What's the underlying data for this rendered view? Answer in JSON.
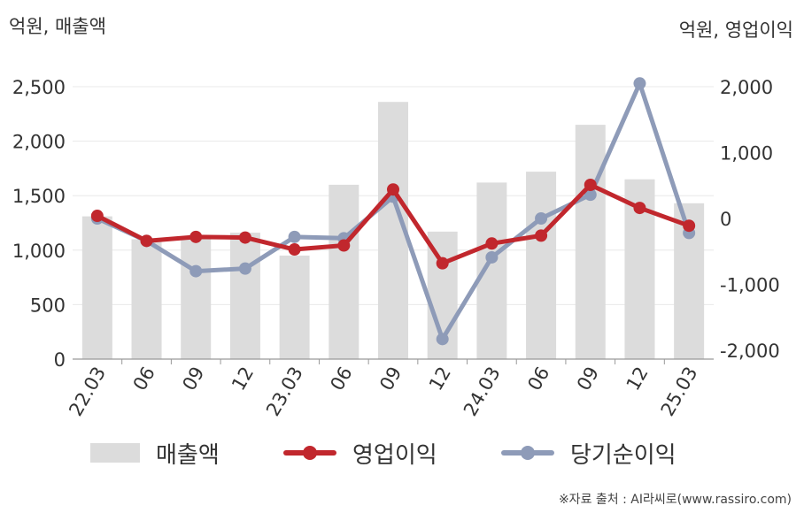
{
  "units": {
    "left": "억원, 매출액",
    "right": "억원, 영업이익"
  },
  "legend": {
    "bar": "매출액",
    "op": "영업이익",
    "net": "당기순이익"
  },
  "source": "※자료 출처 : AI라씨로(www.rassiro.com)",
  "colors": {
    "bar": "#dcdcdc",
    "op": "#c1272d",
    "net": "#8e9bb8",
    "axis": "#999999",
    "grid": "#e8e8e8",
    "text": "#333333"
  },
  "chart_data": {
    "type": "bar+line",
    "categories": [
      "22.03",
      "06",
      "09",
      "12",
      "23.03",
      "06",
      "09",
      "12",
      "24.03",
      "06",
      "09",
      "12",
      "25.03"
    ],
    "left_axis": {
      "min": 0,
      "max": 2500,
      "ticks": [
        "0",
        "500",
        "1,000",
        "1,500",
        "2,000",
        "2,500"
      ],
      "tick_values": [
        0,
        500,
        1000,
        1500,
        2000,
        2500
      ]
    },
    "right_axis": {
      "min": -2000,
      "max": 2000,
      "ticks": [
        "-2,000",
        "-1,000",
        "0",
        "1,000",
        "2,000"
      ],
      "tick_values": [
        -2000,
        -1000,
        0,
        1000,
        2000
      ]
    },
    "series": [
      {
        "name": "매출액",
        "type": "bar",
        "axis": "left",
        "values": [
          1310,
          1100,
          1120,
          1160,
          950,
          1600,
          2360,
          1170,
          1620,
          1720,
          2150,
          1650,
          1430
        ]
      },
      {
        "name": "영업이익",
        "type": "line",
        "axis": "right",
        "values": [
          40,
          -340,
          -280,
          -290,
          -470,
          -410,
          440,
          -680,
          -380,
          -260,
          510,
          160,
          -110
        ]
      },
      {
        "name": "당기순이익",
        "type": "line",
        "axis": "right",
        "values": [
          0,
          -340,
          -800,
          -760,
          -280,
          -300,
          330,
          -1830,
          -590,
          0,
          360,
          2050,
          -220
        ]
      }
    ]
  }
}
